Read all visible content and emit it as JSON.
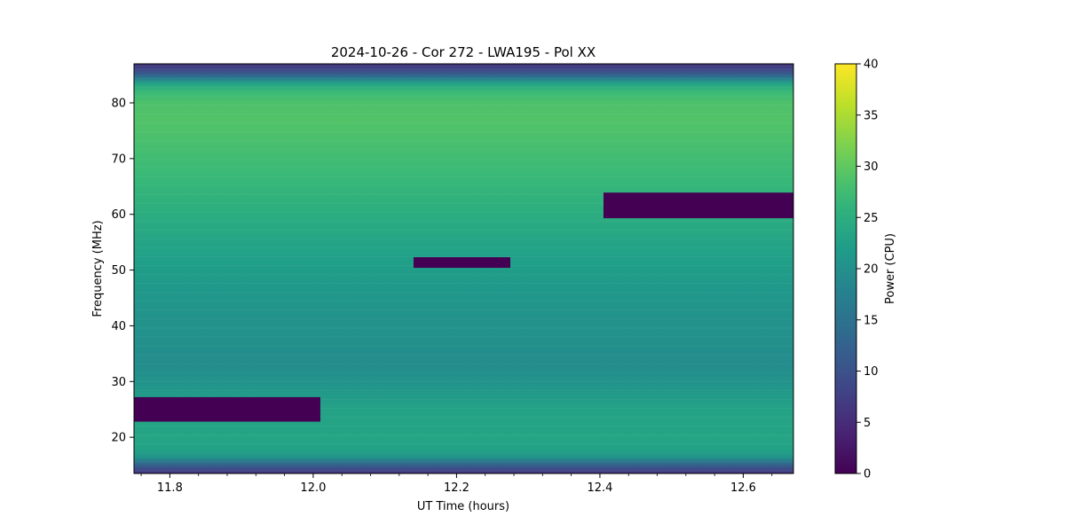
{
  "chart_data": {
    "type": "heatmap",
    "title": "2024-10-26 - Cor 272 - LWA195 - Pol XX",
    "xlabel": "UT Time (hours)",
    "ylabel": "Frequency (MHz)",
    "xlim": [
      11.75,
      12.67
    ],
    "ylim": [
      13.5,
      87.0
    ],
    "x_ticks": [
      11.8,
      12.0,
      12.2,
      12.4,
      12.6
    ],
    "x_tick_labels": [
      "11.8",
      "12.0",
      "12.2",
      "12.4",
      "12.6"
    ],
    "y_ticks": [
      20,
      30,
      40,
      50,
      60,
      70,
      80
    ],
    "y_tick_labels": [
      "20",
      "30",
      "40",
      "50",
      "60",
      "70",
      "80"
    ],
    "colormap": "viridis",
    "colorbar": {
      "label": "Power (CPU)",
      "range": [
        0,
        40
      ],
      "ticks": [
        0,
        5,
        10,
        15,
        20,
        25,
        30,
        35,
        40
      ],
      "tick_labels": [
        "0",
        "5",
        "10",
        "15",
        "20",
        "25",
        "30",
        "35",
        "40"
      ]
    },
    "frequency_profile_mhz": [
      13.5,
      14.5,
      15.5,
      16.5,
      18,
      20,
      25,
      30,
      33,
      37,
      42,
      47,
      52,
      57,
      62,
      67,
      72,
      77,
      80,
      82,
      83.5,
      84.5,
      85.5,
      87
    ],
    "power_profile_cpu": [
      6,
      10,
      15,
      21,
      23,
      23.5,
      23,
      20.5,
      19.5,
      20,
      20.5,
      21.5,
      22.5,
      24,
      25.5,
      27,
      28,
      29,
      28.5,
      27,
      23,
      16,
      10,
      6
    ],
    "masked_regions": [
      {
        "time_start": 11.75,
        "time_end": 12.01,
        "freq_low": 22.8,
        "freq_high": 27.2,
        "power": 0
      },
      {
        "time_start": 12.14,
        "time_end": 12.275,
        "freq_low": 50.4,
        "freq_high": 52.3,
        "power": 0
      },
      {
        "time_start": 12.405,
        "time_end": 12.67,
        "freq_low": 59.3,
        "freq_high": 63.9,
        "power": 0
      }
    ]
  }
}
